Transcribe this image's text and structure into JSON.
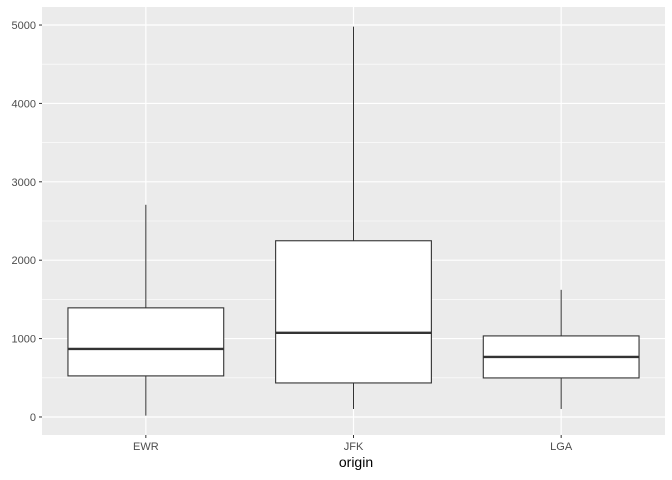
{
  "chart_data": {
    "type": "boxplot",
    "title": "",
    "xlabel": "origin",
    "ylabel": "",
    "categories": [
      "EWR",
      "JFK",
      "LGA"
    ],
    "boxes": [
      {
        "category": "EWR",
        "whisker_low": 17,
        "q1": 524,
        "median": 868,
        "q3": 1392,
        "whisker_high": 2707
      },
      {
        "category": "JFK",
        "whisker_low": 102,
        "q1": 434,
        "median": 1073,
        "q3": 2248,
        "whisker_high": 4980
      },
      {
        "category": "LGA",
        "whisker_low": 102,
        "q1": 498,
        "median": 766,
        "q3": 1034,
        "whisker_high": 1622
      }
    ],
    "yticks": [
      0,
      1000,
      2000,
      3000,
      4000,
      5000
    ],
    "ylim": [
      -230,
      5230
    ],
    "grid": true,
    "colors": {
      "panel": "#ebebeb",
      "grid": "#ffffff",
      "box_fill": "#ffffff",
      "box_line": "#333333"
    }
  }
}
